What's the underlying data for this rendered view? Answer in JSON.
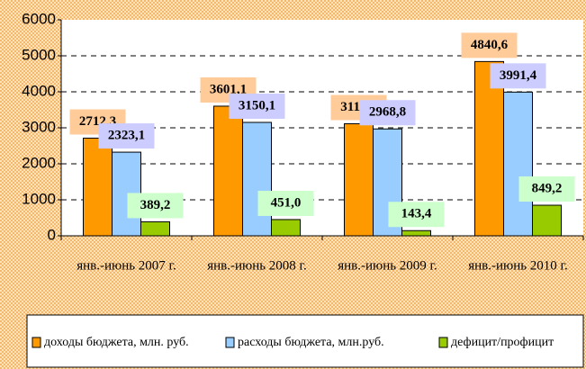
{
  "chart_data": {
    "type": "bar",
    "categories": [
      "янв.-июнь 2007 г.",
      "янв.-июнь 2008 г.",
      "янв.-июнь 2009 г.",
      "янв.-июнь 2010 г."
    ],
    "series": [
      {
        "name": "доходы бюджета, млн. руб.",
        "color": "#ff9900",
        "label_color": "#ffcc99",
        "values": [
          2712.3,
          3601.1,
          3112.2,
          4840.6
        ],
        "value_labels": [
          "2712,3",
          "3601,1",
          "3112,2",
          "4840,6"
        ]
      },
      {
        "name": "расходы бюджета, млн.руб.",
        "color": "#99ccff",
        "label_color": "#ccccff",
        "values": [
          2323.1,
          3150.1,
          2968.8,
          3991.4
        ],
        "value_labels": [
          "2323,1",
          "3150,1",
          "2968,8",
          "3991,4"
        ]
      },
      {
        "name": "дефицит/профицит",
        "color": "#99cc00",
        "label_color": "#ccffcc",
        "values": [
          389.2,
          451.0,
          143.4,
          849.2
        ],
        "value_labels": [
          "389,2",
          "451,0",
          "143,4",
          "849,2"
        ]
      }
    ],
    "ylim": [
      0,
      6000
    ],
    "yticks": [
      0,
      1000,
      2000,
      3000,
      4000,
      5000,
      6000
    ],
    "grid": true,
    "legend": "bottom"
  }
}
